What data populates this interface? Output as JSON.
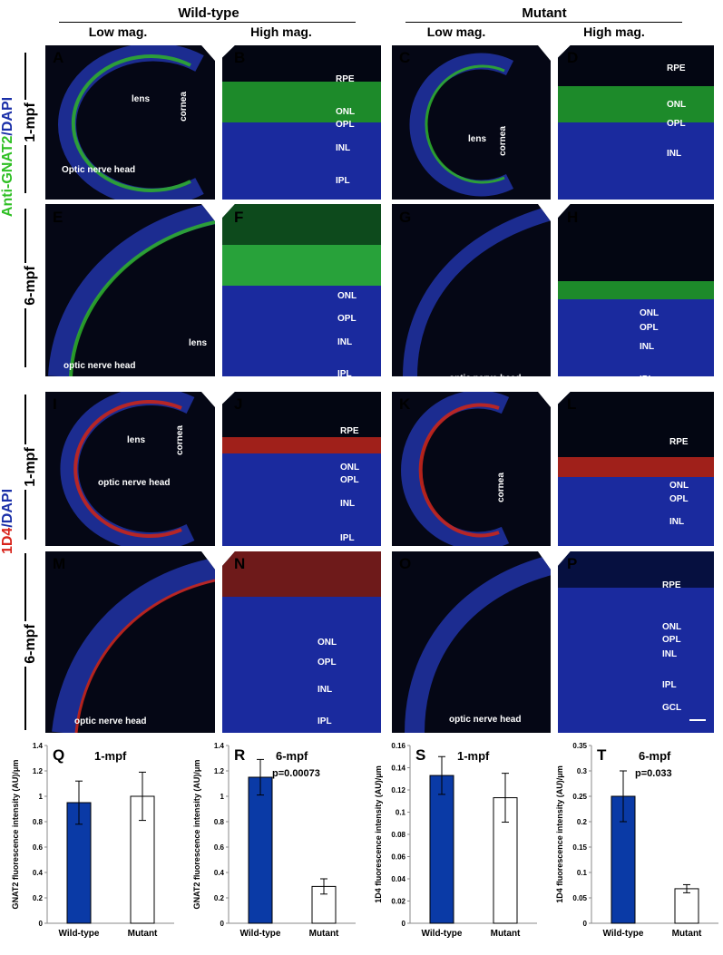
{
  "headers": {
    "wildtype": "Wild-type",
    "mutant": "Mutant",
    "lowmag": "Low mag.",
    "highmag": "High mag."
  },
  "rows": {
    "gnat_stain": "Anti-GNAT2",
    "d4_stain": "1D4",
    "dapi": "/DAPI",
    "r1": "1-mpf",
    "r2": "6-mpf",
    "r3": "1-mpf",
    "r4": "6-mpf"
  },
  "panels": [
    {
      "letter": "A",
      "labels": [
        "lens",
        "cornea",
        "Optic nerve head"
      ]
    },
    {
      "letter": "B",
      "labels": [
        "RPE",
        "ONL",
        "OPL",
        "INL",
        "IPL"
      ]
    },
    {
      "letter": "C",
      "labels": [
        "lens",
        "cornea"
      ]
    },
    {
      "letter": "D",
      "labels": [
        "RPE",
        "ONL",
        "OPL",
        "INL"
      ]
    },
    {
      "letter": "E",
      "labels": [
        "lens",
        "optic nerve head"
      ]
    },
    {
      "letter": "F",
      "labels": [
        "ONL",
        "OPL",
        "INL",
        "IPL"
      ]
    },
    {
      "letter": "G",
      "labels": [
        "optic nerve head"
      ]
    },
    {
      "letter": "H",
      "labels": [
        "ONL",
        "OPL",
        "INL",
        "IPL"
      ]
    },
    {
      "letter": "I",
      "labels": [
        "lens",
        "cornea",
        "optic nerve head"
      ]
    },
    {
      "letter": "J",
      "labels": [
        "RPE",
        "ONL",
        "OPL",
        "INL",
        "IPL"
      ]
    },
    {
      "letter": "K",
      "labels": [
        "cornea"
      ]
    },
    {
      "letter": "L",
      "labels": [
        "RPE",
        "ONL",
        "OPL",
        "INL"
      ]
    },
    {
      "letter": "M",
      "labels": [
        "optic nerve head"
      ]
    },
    {
      "letter": "N",
      "labels": [
        "ONL",
        "OPL",
        "INL",
        "IPL"
      ]
    },
    {
      "letter": "O",
      "labels": [
        "optic nerve head"
      ]
    },
    {
      "letter": "P",
      "labels": [
        "RPE",
        "ONL",
        "OPL",
        "INL",
        "IPL",
        "GCL"
      ]
    }
  ],
  "colors": {
    "wildtype_bar": "#0a3aa6",
    "mutant_bar": "#ffffff",
    "dapi_blue": "#1a2fa8",
    "gnat_green": "#39d12e",
    "d4_red": "#e0261c"
  },
  "chart_data": [
    {
      "type": "bar",
      "letter": "Q",
      "title": "1-mpf",
      "pvalue": "",
      "ylabel": "GNAT2 fluorescence intensity (AU)/μm",
      "categories": [
        "Wild-type",
        "Mutant"
      ],
      "values": [
        0.95,
        1.0
      ],
      "errors": [
        0.17,
        0.19
      ],
      "ylim": [
        0,
        1.4
      ],
      "ticks": [
        "0",
        "0.2",
        "0.4",
        "0.6",
        "0.8",
        "1",
        "1.2",
        "1.4"
      ]
    },
    {
      "type": "bar",
      "letter": "R",
      "title": "6-mpf",
      "pvalue": "p=0.00073",
      "ylabel": "GNAT2 fluorescence intensity (AU)/μm",
      "categories": [
        "Wild-type",
        "Mutant"
      ],
      "values": [
        1.15,
        0.29
      ],
      "errors": [
        0.14,
        0.06
      ],
      "ylim": [
        0,
        1.4
      ],
      "ticks": [
        "0",
        "0.2",
        "0.4",
        "0.6",
        "0.8",
        "1",
        "1.2",
        "1.4"
      ]
    },
    {
      "type": "bar",
      "letter": "S",
      "title": "1-mpf",
      "pvalue": "",
      "ylabel": "1D4 fluorescence intensity (AU)/μm",
      "categories": [
        "Wild-type",
        "Mutant"
      ],
      "values": [
        0.133,
        0.113
      ],
      "errors": [
        0.017,
        0.022
      ],
      "ylim": [
        0,
        0.16
      ],
      "ticks": [
        "0",
        "0.02",
        "0.04",
        "0.06",
        "0.08",
        "0.1",
        "0.12",
        "0.14",
        "0.16"
      ]
    },
    {
      "type": "bar",
      "letter": "T",
      "title": "6-mpf",
      "pvalue": "p=0.033",
      "ylabel": "1D4 fluorescence intensity (AU)/μm",
      "categories": [
        "Wild-type",
        "Mutant"
      ],
      "values": [
        0.25,
        0.068
      ],
      "errors": [
        0.05,
        0.008
      ],
      "ylim": [
        0,
        0.35
      ],
      "ticks": [
        "0",
        "0.05",
        "0.1",
        "0.15",
        "0.2",
        "0.25",
        "0.3",
        "0.35"
      ]
    }
  ]
}
